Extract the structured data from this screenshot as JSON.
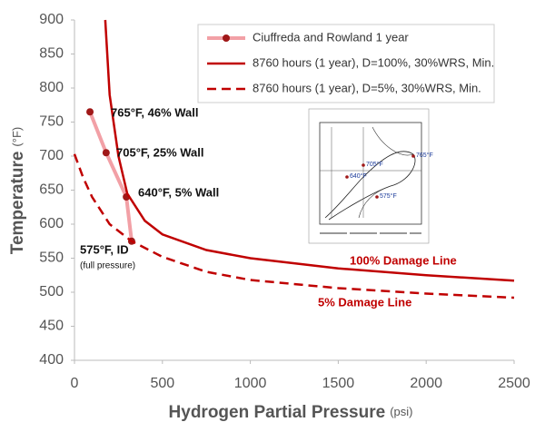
{
  "chart_data": {
    "type": "line",
    "x_label": "Hydrogen Partial Pressure",
    "x_unit": "(psi)",
    "y_label": "Temperature",
    "y_unit": "(°F)",
    "xlim": [
      0,
      2500
    ],
    "xticks": [
      0,
      500,
      1000,
      1500,
      2000,
      2500
    ],
    "ylim": [
      400,
      900
    ],
    "yticks": [
      400,
      450,
      500,
      550,
      600,
      650,
      700,
      750,
      800,
      850,
      900
    ],
    "series": [
      {
        "name": "Ciuffreda and Rowland 1 year",
        "color": "#f2a0a6",
        "marker_color": "#a01818",
        "style": "solid-markers",
        "x": [
          88,
          180,
          295,
          325
        ],
        "values": [
          765,
          705,
          640,
          575
        ]
      },
      {
        "name": "8760 hours (1 year), D=100%, 30%WRS, Min.",
        "color": "#c00000",
        "style": "solid",
        "x": [
          175,
          200,
          250,
          300,
          400,
          500,
          750,
          1000,
          1500,
          2000,
          2500
        ],
        "values": [
          900,
          790,
          700,
          645,
          605,
          585,
          562,
          550,
          535,
          525,
          517
        ]
      },
      {
        "name": "8760 hours (1 year), D=5%, 30%WRS, Min.",
        "color": "#c00000",
        "style": "dashed",
        "x": [
          0,
          50,
          100,
          200,
          325,
          500,
          750,
          1000,
          1500,
          2000,
          2500
        ],
        "values": [
          703,
          668,
          640,
          600,
          575,
          552,
          530,
          518,
          506,
          498,
          492
        ]
      }
    ],
    "annotations": [
      "765°F, 46% Wall",
      "705°F, 25% Wall",
      "640°F, 5% Wall",
      "575°F, ID",
      "(full pressure)",
      "100% Damage Line",
      "5% Damage Line"
    ],
    "inset_labels": [
      "765°F",
      "705°F",
      "640°F",
      "575°F"
    ]
  }
}
